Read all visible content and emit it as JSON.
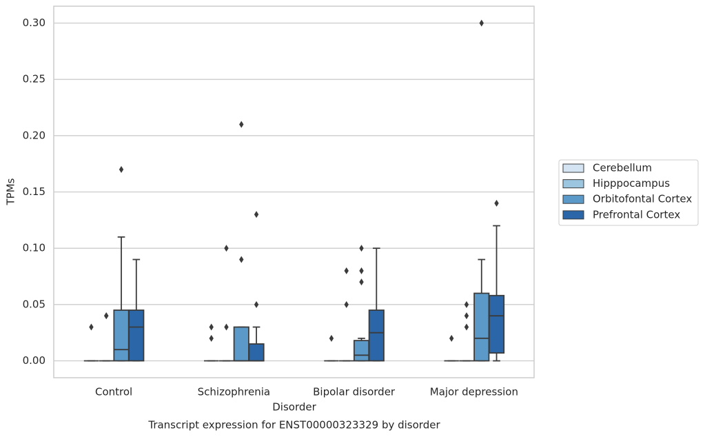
{
  "chart_data": {
    "type": "box",
    "title": "Transcript expression for ENST00000323329 by disorder",
    "x_label": "Disorder",
    "y_label": "TPMs",
    "categories": [
      "Control",
      "Schizophrenia",
      "Bipolar disorder",
      "Major depression"
    ],
    "ylim": [
      -0.015,
      0.315
    ],
    "yticks": [
      {
        "value": 0,
        "label": "0.00"
      },
      {
        "value": 0.05,
        "label": "0.05"
      },
      {
        "value": 0.1,
        "label": "0.10"
      },
      {
        "value": 0.15,
        "label": "0.15"
      },
      {
        "value": 0.2,
        "label": "0.20"
      },
      {
        "value": 0.25,
        "label": "0.25"
      },
      {
        "value": 0.3,
        "label": "0.30"
      }
    ],
    "grid": true,
    "legend": "right",
    "series": [
      {
        "name": "Cerebellum",
        "color": "#d4e4f3",
        "stats": [
          {
            "whislo": 0,
            "q1": 0,
            "med": 0,
            "q3": 0,
            "whishi": 0,
            "fliers": [
              0.03
            ]
          },
          {
            "whislo": 0,
            "q1": 0,
            "med": 0,
            "q3": 0,
            "whishi": 0,
            "fliers": [
              0.02,
              0.03
            ]
          },
          {
            "whislo": 0,
            "q1": 0,
            "med": 0,
            "q3": 0,
            "whishi": 0,
            "fliers": [
              0.02
            ]
          },
          {
            "whislo": 0,
            "q1": 0,
            "med": 0,
            "q3": 0,
            "whishi": 0,
            "fliers": [
              0.02
            ]
          }
        ]
      },
      {
        "name": "Hipppocampus",
        "color": "#9cc6e0",
        "stats": [
          {
            "whislo": 0,
            "q1": 0,
            "med": 0,
            "q3": 0,
            "whishi": 0,
            "fliers": [
              0.04,
              0.04
            ]
          },
          {
            "whislo": 0,
            "q1": 0,
            "med": 0,
            "q3": 0,
            "whishi": 0,
            "fliers": [
              0.03,
              0.1
            ]
          },
          {
            "whislo": 0,
            "q1": 0,
            "med": 0,
            "q3": 0,
            "whishi": 0,
            "fliers": [
              0.05,
              0.08
            ]
          },
          {
            "whislo": 0,
            "q1": 0,
            "med": 0,
            "q3": 0,
            "whishi": 0,
            "fliers": [
              0.03,
              0.04,
              0.05
            ]
          }
        ]
      },
      {
        "name": "Orbitofontal Cortex",
        "color": "#5b99c8",
        "stats": [
          {
            "whislo": 0,
            "q1": 0,
            "med": 0.01,
            "q3": 0.045,
            "whishi": 0.11,
            "fliers": [
              0.17
            ]
          },
          {
            "whislo": 0,
            "q1": 0,
            "med": 0,
            "q3": 0.03,
            "whishi": 0.03,
            "fliers": [
              0.09,
              0.21
            ]
          },
          {
            "whislo": 0,
            "q1": 0,
            "med": 0.005,
            "q3": 0.018,
            "whishi": 0.02,
            "fliers": [
              0.07,
              0.08,
              0.1
            ]
          },
          {
            "whislo": 0,
            "q1": 0,
            "med": 0.02,
            "q3": 0.06,
            "whishi": 0.09,
            "fliers": [
              0.3
            ]
          }
        ]
      },
      {
        "name": "Prefrontal Cortex",
        "color": "#2a66a8",
        "stats": [
          {
            "whislo": 0,
            "q1": 0,
            "med": 0.03,
            "q3": 0.045,
            "whishi": 0.09,
            "fliers": []
          },
          {
            "whislo": 0,
            "q1": 0,
            "med": 0,
            "q3": 0.015,
            "whishi": 0.03,
            "fliers": [
              0.05,
              0.13
            ]
          },
          {
            "whislo": 0,
            "q1": 0,
            "med": 0.025,
            "q3": 0.045,
            "whishi": 0.1,
            "fliers": []
          },
          {
            "whislo": 0,
            "q1": 0.007,
            "med": 0.04,
            "q3": 0.058,
            "whishi": 0.12,
            "fliers": [
              0.14
            ]
          }
        ]
      }
    ]
  }
}
